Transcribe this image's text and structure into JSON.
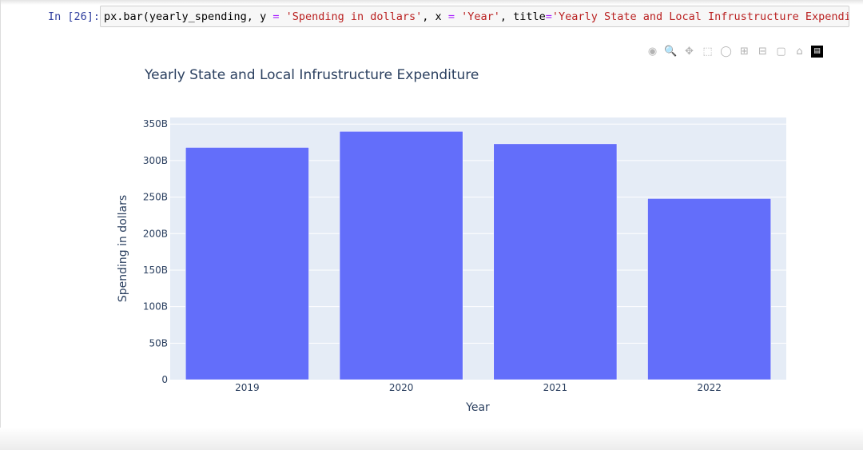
{
  "cell": {
    "prompt": "In [26]:",
    "code_parts": [
      "px.bar(yearly_spending, y ",
      "=",
      " ",
      "'Spending in dollars'",
      ", x ",
      "=",
      " ",
      "'Year'",
      ", title",
      "=",
      "'Yearly State and Local Infrustructure Expenditu"
    ]
  },
  "modebar": {
    "icons": [
      "camera-icon",
      "zoom-icon",
      "pan-icon",
      "box-select-icon",
      "lasso-icon",
      "zoom-in-icon",
      "zoom-out-icon",
      "autoscale-icon",
      "home-icon",
      "plotly-logo-icon"
    ]
  },
  "chart_data": {
    "type": "bar",
    "title": "Yearly State and Local Infrustructure Expenditure",
    "xlabel": "Year",
    "ylabel": "Spending in dollars",
    "categories": [
      "2019",
      "2020",
      "2021",
      "2022"
    ],
    "values": [
      318000000000,
      340000000000,
      323000000000,
      248000000000
    ],
    "ylim": [
      0,
      359000000000
    ],
    "yticks": [
      0,
      50000000000,
      100000000000,
      150000000000,
      200000000000,
      250000000000,
      300000000000,
      350000000000
    ],
    "ytick_labels": [
      "0",
      "50B",
      "100B",
      "150B",
      "200B",
      "250B",
      "300B",
      "350B"
    ],
    "grid": true,
    "bar_color": "#636efa",
    "plot_bg": "#e5ecf6"
  }
}
